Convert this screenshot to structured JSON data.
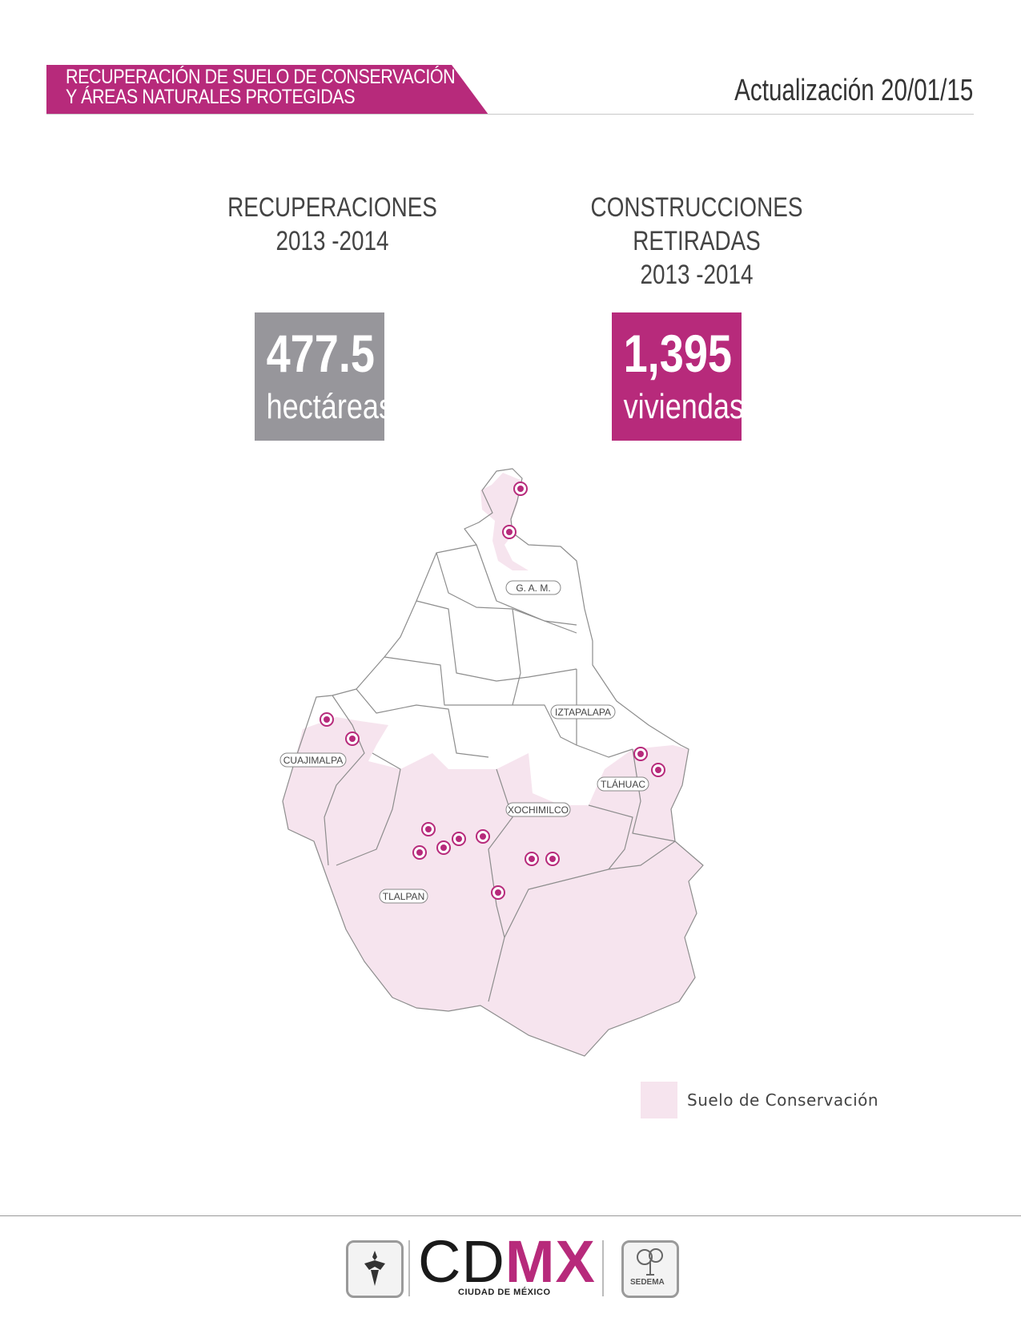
{
  "header": {
    "title_line1": "RECUPERACIÓN DE SUELO DE CONSERVACIÓN",
    "title_line2": "Y ÁREAS NATURALES PROTEGIDAS",
    "update": "Actualización 20/01/15",
    "accent_color": "#b72a7b"
  },
  "stats": {
    "left": {
      "title_line1": "RECUPERACIONES",
      "title_line2": "2013 -2014",
      "value": "477.5",
      "unit": "hectáreas",
      "color": "#97969b"
    },
    "right": {
      "title_line1": "CONSTRUCCIONES RETIRADAS",
      "title_line2": "2013 -2014",
      "value": "1,395",
      "unit": "viviendas",
      "color": "#b72a7b"
    }
  },
  "map": {
    "labels": [
      "G. A. M.",
      "IZTAPALAPA",
      "CUAJIMALPA",
      "TLÁHUAC",
      "XOCHIMILCO",
      "TLALPAN"
    ],
    "conservation_color": "#f6e4ee",
    "marker_color": "#b72a7b"
  },
  "legend": {
    "label": "Suelo de Conservación"
  },
  "footer": {
    "brand_cd": "CD",
    "brand_mx": "MX",
    "brand_sub": "CIUDAD DE MÉXICO",
    "sedema": "SEDEMA",
    "gov_icon": "angel-emblem-icon",
    "sedema_icon": "tree-icon"
  }
}
